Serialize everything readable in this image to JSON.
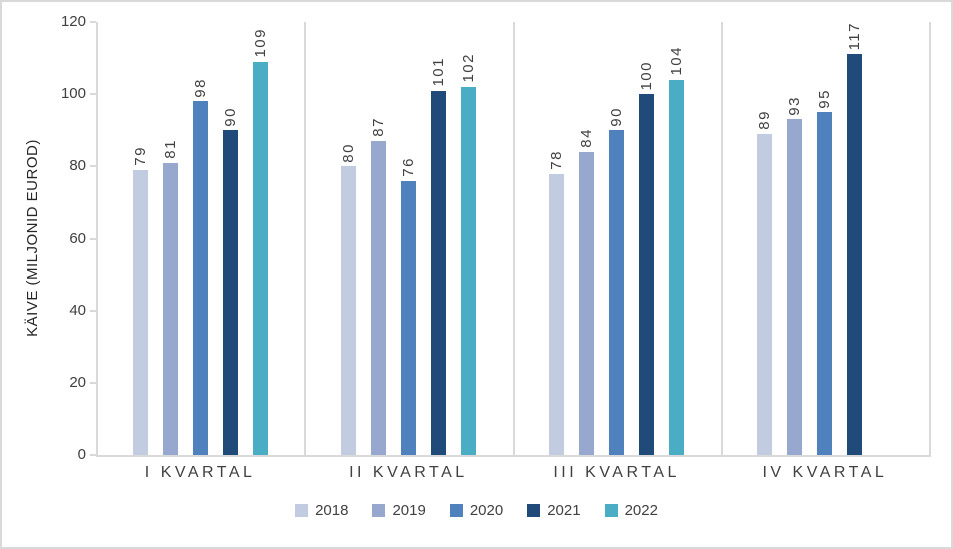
{
  "chart_data": {
    "type": "bar",
    "title": "",
    "ylabel": "KÄIVE (MILJONID EUROD)",
    "xlabel": "",
    "categories": [
      "I KVARTAL",
      "II KVARTAL",
      "III KVARTAL",
      "IV KVARTAL"
    ],
    "series": [
      {
        "name": "2018",
        "color": "#c1cce0",
        "values": [
          79,
          80,
          78,
          89
        ]
      },
      {
        "name": "2019",
        "color": "#96a8ce",
        "values": [
          81,
          87,
          84,
          93
        ]
      },
      {
        "name": "2020",
        "color": "#4f81bc",
        "values": [
          98,
          76,
          90,
          95
        ]
      },
      {
        "name": "2021",
        "color": "#1f4a7a",
        "values": [
          90,
          101,
          100,
          117
        ]
      },
      {
        "name": "2022",
        "color": "#4aacc5",
        "values": [
          109,
          102,
          104,
          null
        ]
      }
    ],
    "ylim": [
      0,
      120
    ],
    "y_ticks": [
      0,
      20,
      40,
      60,
      80,
      100,
      120
    ],
    "grid": false,
    "legend_position": "bottom",
    "data_labels": true
  }
}
